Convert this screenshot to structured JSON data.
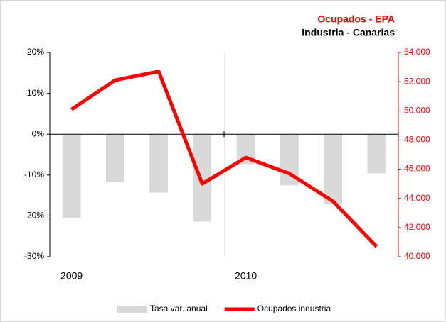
{
  "chart_data": {
    "type": "bar-line",
    "title": "Ocupados - EPA",
    "subtitle": "Industria - Canarias",
    "categories": [
      "2009",
      null,
      null,
      null,
      "2010",
      null,
      null,
      null
    ],
    "series": [
      {
        "name": "Tasa var. anual",
        "type": "bar",
        "color": "#d9d9d9",
        "values": [
          -20.5,
          -11.7,
          -14.3,
          -21.4,
          -7.3,
          -12.5,
          -17.2,
          -9.6
        ]
      },
      {
        "name": "Ocupados industria",
        "type": "line",
        "axis": "y2",
        "color": "#ff0000",
        "values": [
          50100,
          52100,
          52700,
          45000,
          46800,
          45700,
          43800,
          40700
        ]
      }
    ],
    "ylim": [
      -30,
      20
    ],
    "yticks": [
      {
        "value": 20,
        "label": "20%"
      },
      {
        "value": 10,
        "label": "10%"
      },
      {
        "value": 0,
        "label": "0%"
      },
      {
        "value": -10,
        "label": "-10%"
      },
      {
        "value": -20,
        "label": "-20%"
      },
      {
        "value": -30,
        "label": "-30%"
      }
    ],
    "y2lim": [
      40000,
      54000
    ],
    "y2ticks": [
      {
        "value": 54000,
        "label": "54.000"
      },
      {
        "value": 52000,
        "label": "52.000"
      },
      {
        "value": 50000,
        "label": "50.000"
      },
      {
        "value": 48000,
        "label": "48.000"
      },
      {
        "value": 46000,
        "label": "46.000"
      },
      {
        "value": 44000,
        "label": "44.000"
      },
      {
        "value": 42000,
        "label": "42.000"
      },
      {
        "value": 40000,
        "label": "40.000"
      }
    ],
    "legend": "bottom"
  }
}
